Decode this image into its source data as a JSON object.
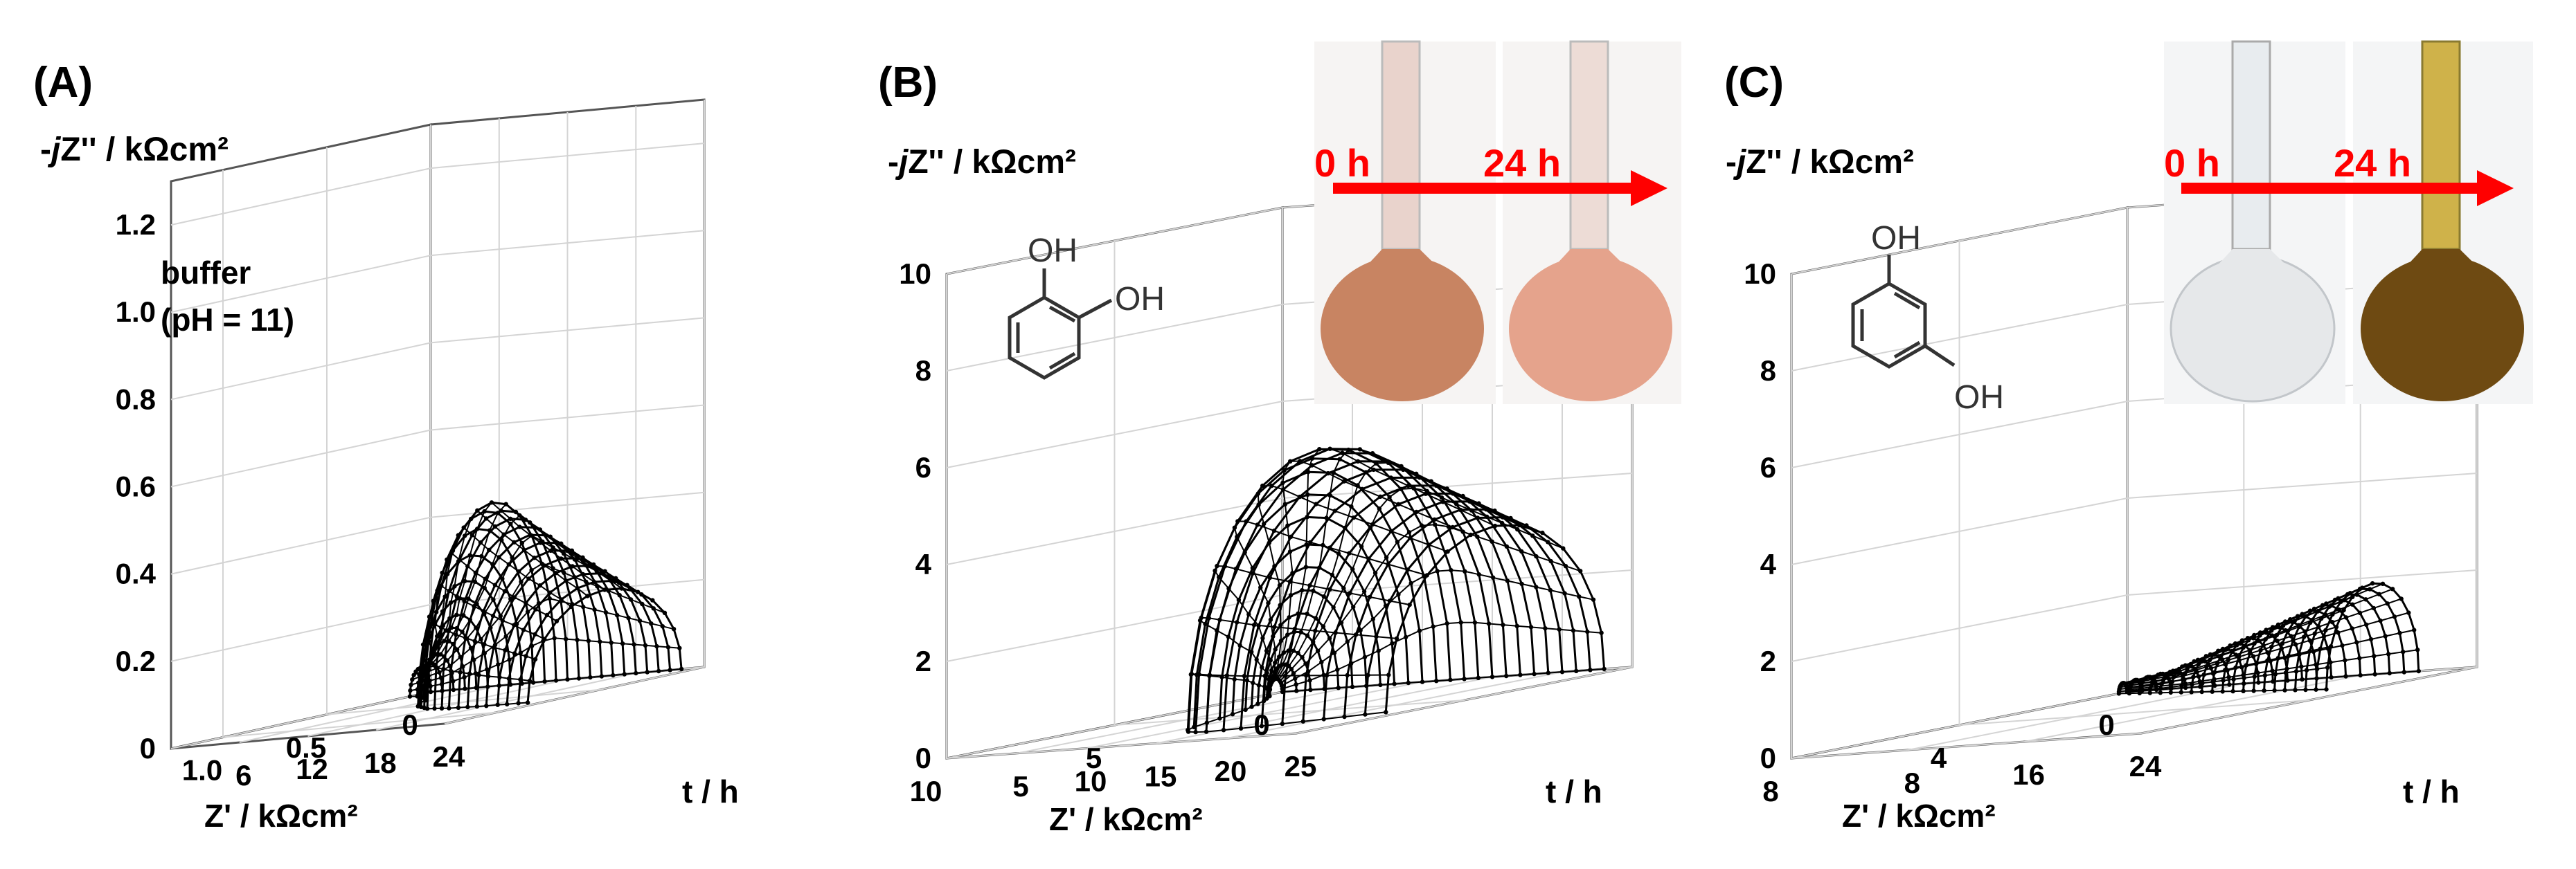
{
  "panels": [
    {
      "id": "A",
      "letter": "(A)",
      "ylabel_pre": "-",
      "ylabel_j": "j",
      "ylabel_post": "Z'' / kΩcm²",
      "xlabel": "Z' / kΩcm²",
      "tlabel": "t / h",
      "note_line1": "buffer",
      "note_line2": "(pH = 11)",
      "yticks": [
        "0",
        "0.2",
        "0.4",
        "0.6",
        "0.8",
        "1.0",
        "1.2"
      ],
      "xticks": [
        "0",
        "0.5",
        "1.0"
      ],
      "tticks": [
        "6",
        "12",
        "18",
        "24"
      ]
    },
    {
      "id": "B",
      "letter": "(B)",
      "ylabel_pre": "-",
      "ylabel_j": "j",
      "ylabel_post": "Z'' / kΩcm²",
      "xlabel": "Z' / kΩcm²",
      "tlabel": "t / h",
      "yticks": [
        "0",
        "2",
        "4",
        "6",
        "8",
        "10"
      ],
      "xticks": [
        "0",
        "5",
        "10"
      ],
      "tticks": [
        "5",
        "10",
        "15",
        "20",
        "25"
      ],
      "arrow_start": "0 h",
      "arrow_end": "24 h",
      "molecule_labels": [
        "OH",
        "OH"
      ]
    },
    {
      "id": "C",
      "letter": "(C)",
      "ylabel_pre": "-",
      "ylabel_j": "j",
      "ylabel_post": "Z'' / kΩcm²",
      "xlabel": "Z' / kΩcm²",
      "tlabel": "t / h",
      "yticks": [
        "0",
        "2",
        "4",
        "6",
        "8",
        "10"
      ],
      "xticks": [
        "0",
        "4",
        "8"
      ],
      "tticks": [
        "8",
        "16",
        "24"
      ],
      "arrow_start": "0 h",
      "arrow_end": "24 h",
      "molecule_labels": [
        "OH",
        "OH"
      ]
    }
  ],
  "colors": {
    "data": "#000000",
    "arrow": "#ff0000",
    "grid": "#d4d4d4",
    "axes": "#555555"
  },
  "chart_data": [
    {
      "type": "line",
      "panel": "A",
      "plot": "3D waterfall Nyquist spectra vs time",
      "x_axis": "Z'",
      "y_axis": "-jZ''",
      "t_axis": "t",
      "xlim": [
        0,
        1.25
      ],
      "ylim": [
        0,
        1.3
      ],
      "tlim": [
        0,
        24
      ],
      "t_values": [
        0,
        1,
        2,
        3,
        4,
        5,
        6,
        7,
        8,
        9,
        10,
        11,
        12,
        13,
        14,
        15,
        16,
        17,
        18,
        19,
        20,
        21,
        22
      ],
      "semicircle_diameter_Z": [
        0.1,
        0.12,
        0.16,
        0.2,
        0.24,
        0.3,
        0.38,
        0.44,
        0.5,
        0.54,
        0.58,
        0.62,
        0.64,
        0.66,
        0.68,
        0.69,
        0.7,
        0.71,
        0.72,
        0.72,
        0.73,
        0.73,
        0.74
      ],
      "peak_minus_jZ": [
        0.06,
        0.07,
        0.09,
        0.12,
        0.15,
        0.18,
        0.22,
        0.26,
        0.32,
        0.38,
        0.42,
        0.44,
        0.42,
        0.4,
        0.38,
        0.36,
        0.34,
        0.32,
        0.3,
        0.28,
        0.26,
        0.24,
        0.22
      ]
    },
    {
      "type": "line",
      "panel": "B",
      "plot": "3D waterfall Nyquist spectra vs time",
      "x_axis": "Z'",
      "y_axis": "-jZ''",
      "t_axis": "t",
      "xlim": [
        0,
        10
      ],
      "ylim": [
        0,
        10
      ],
      "tlim": [
        0,
        25
      ],
      "t_values": [
        0,
        1,
        2,
        3,
        4,
        5,
        6,
        7,
        8,
        9,
        10,
        11,
        12,
        13,
        14,
        15,
        16,
        17,
        18,
        19,
        20,
        21,
        22,
        23
      ],
      "semicircle_diameter_Z": [
        0.4,
        0.8,
        1.3,
        1.8,
        2.4,
        3.0,
        3.6,
        4.4,
        5.2,
        6.0,
        6.8,
        7.4,
        7.8,
        8.0,
        8.1,
        8.0,
        7.9,
        7.7,
        7.5,
        7.3,
        7.1,
        6.9,
        6.7,
        6.5
      ],
      "peak_minus_jZ": [
        0.3,
        0.6,
        0.9,
        1.3,
        1.7,
        2.2,
        2.7,
        3.2,
        3.8,
        4.3,
        4.8,
        5.1,
        5.3,
        5.3,
        5.2,
        5.0,
        4.8,
        4.6,
        4.4,
        4.2,
        4.0,
        3.8,
        3.6,
        3.4
      ]
    },
    {
      "type": "line",
      "panel": "C",
      "plot": "3D waterfall Nyquist spectra vs time",
      "x_axis": "Z'",
      "y_axis": "-jZ''",
      "t_axis": "t",
      "xlim": [
        0,
        8
      ],
      "ylim": [
        0,
        10
      ],
      "tlim": [
        0,
        24
      ],
      "t_values": [
        0,
        1,
        2,
        3,
        4,
        5,
        6,
        7,
        8,
        9,
        10,
        11,
        12,
        13,
        14,
        15,
        16,
        17,
        18,
        19,
        20
      ],
      "semicircle_diameter_Z": [
        0.2,
        0.3,
        0.4,
        0.5,
        0.6,
        0.7,
        0.8,
        0.9,
        1.0,
        1.1,
        1.2,
        1.3,
        1.4,
        1.5,
        1.6,
        1.7,
        1.8,
        1.9,
        2.0,
        2.1,
        2.2
      ],
      "peak_minus_jZ": [
        0.2,
        0.25,
        0.3,
        0.35,
        0.4,
        0.5,
        0.6,
        0.7,
        0.8,
        0.9,
        1.0,
        1.1,
        1.2,
        1.3,
        1.4,
        1.5,
        1.6,
        1.7,
        1.8,
        1.9,
        2.0
      ]
    }
  ]
}
